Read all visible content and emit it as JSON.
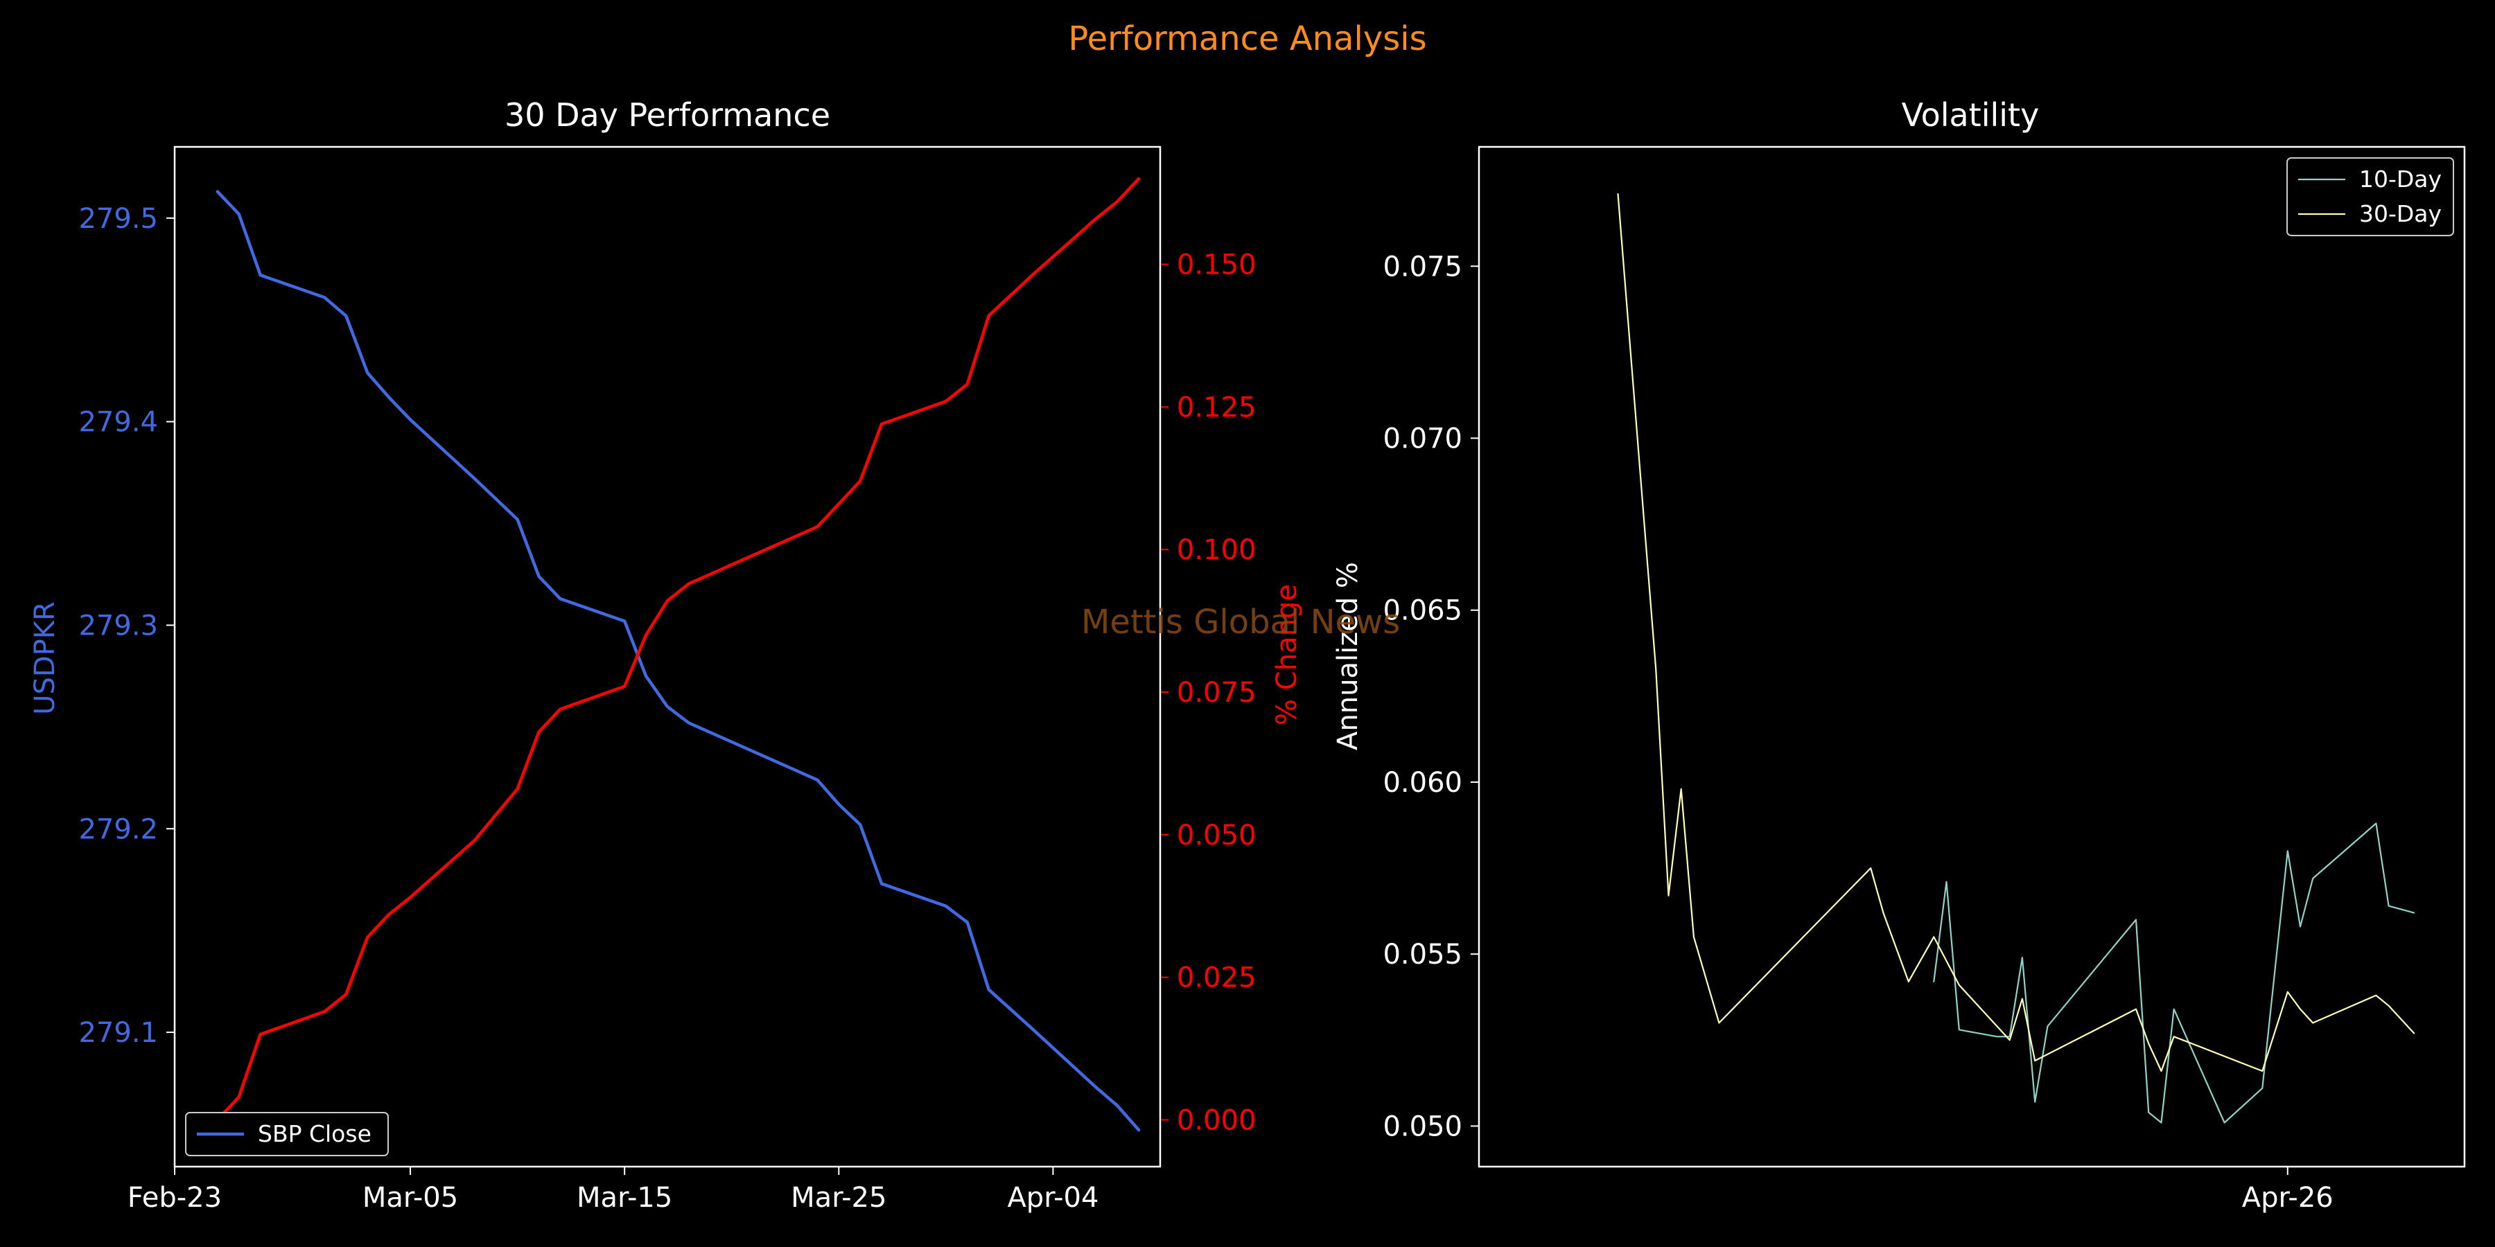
{
  "figure": {
    "suptitle": "Performance Analysis",
    "watermark": "Mettis Global News",
    "colors": {
      "background": "#000000",
      "suptitle": "#ff8c1a",
      "watermark": "#8b4a12"
    }
  },
  "chart_data": [
    {
      "type": "line",
      "title": "30 Day Performance",
      "xlabel": "",
      "ylabel": "USDPKR",
      "ylabel_right": "% Change",
      "x_tick_labels": [
        "Feb-23",
        "Mar-05",
        "Mar-15",
        "Mar-25",
        "Apr-04"
      ],
      "x_tick_dates": [
        "2024-02-23",
        "2024-03-05",
        "2024-03-15",
        "2024-03-25",
        "2024-04-04"
      ],
      "xlim": [
        "2024-02-23",
        "2024-04-09"
      ],
      "ylim": [
        279.034,
        279.535
      ],
      "y_ticks": [
        279.1,
        279.2,
        279.3,
        279.4,
        279.5
      ],
      "y_tick_labels": [
        "279.1",
        "279.2",
        "279.3",
        "279.4",
        "279.5"
      ],
      "ylim_right": [
        -0.0082,
        0.1706
      ],
      "y_ticks_right": [
        0.0,
        0.025,
        0.05,
        0.075,
        0.1,
        0.125,
        0.15
      ],
      "y_tick_labels_right": [
        "0.000",
        "0.025",
        "0.050",
        "0.075",
        "0.100",
        "0.125",
        "0.150"
      ],
      "legend": {
        "placement": "lower-left",
        "entries": [
          "SBP Close"
        ]
      },
      "grid": false,
      "series": [
        {
          "name": "SBP Close",
          "axis": "left",
          "color": "#4169e1",
          "points": [
            [
              "2024-02-25",
              279.513
            ],
            [
              "2024-02-26",
              279.502
            ],
            [
              "2024-02-27",
              279.472
            ],
            [
              "2024-03-01",
              279.461
            ],
            [
              "2024-03-02",
              279.452
            ],
            [
              "2024-03-03",
              279.424
            ],
            [
              "2024-03-04",
              279.412
            ],
            [
              "2024-03-05",
              279.401
            ],
            [
              "2024-03-08",
              279.372
            ],
            [
              "2024-03-10",
              279.352
            ],
            [
              "2024-03-11",
              279.324
            ],
            [
              "2024-03-12",
              279.313
            ],
            [
              "2024-03-15",
              279.302
            ],
            [
              "2024-03-16",
              279.275
            ],
            [
              "2024-03-17",
              279.26
            ],
            [
              "2024-03-18",
              279.252
            ],
            [
              "2024-03-24",
              279.224
            ],
            [
              "2024-03-25",
              279.212
            ],
            [
              "2024-03-26",
              279.202
            ],
            [
              "2024-03-27",
              279.173
            ],
            [
              "2024-03-30",
              279.162
            ],
            [
              "2024-03-31",
              279.154
            ],
            [
              "2024-04-01",
              279.121
            ],
            [
              "2024-04-03",
              279.102
            ],
            [
              "2024-04-06",
              279.073
            ],
            [
              "2024-04-07",
              279.064
            ],
            [
              "2024-04-08",
              279.052
            ]
          ]
        },
        {
          "name": "",
          "axis": "right",
          "color": "#ff0000",
          "points": [
            [
              "2024-02-25",
              0.0
            ],
            [
              "2024-02-26",
              0.004
            ],
            [
              "2024-02-27",
              0.015
            ],
            [
              "2024-03-01",
              0.019
            ],
            [
              "2024-03-02",
              0.022
            ],
            [
              "2024-03-03",
              0.032
            ],
            [
              "2024-03-04",
              0.036
            ],
            [
              "2024-03-05",
              0.039
            ],
            [
              "2024-03-08",
              0.049
            ],
            [
              "2024-03-10",
              0.058
            ],
            [
              "2024-03-11",
              0.068
            ],
            [
              "2024-03-12",
              0.072
            ],
            [
              "2024-03-15",
              0.076
            ],
            [
              "2024-03-16",
              0.085
            ],
            [
              "2024-03-17",
              0.091
            ],
            [
              "2024-03-18",
              0.094
            ],
            [
              "2024-03-24",
              0.104
            ],
            [
              "2024-03-25",
              0.108
            ],
            [
              "2024-03-26",
              0.112
            ],
            [
              "2024-03-27",
              0.122
            ],
            [
              "2024-03-30",
              0.126
            ],
            [
              "2024-03-31",
              0.129
            ],
            [
              "2024-04-01",
              0.141
            ],
            [
              "2024-04-03",
              0.148
            ],
            [
              "2024-04-06",
              0.158
            ],
            [
              "2024-04-07",
              0.161
            ],
            [
              "2024-04-08",
              0.165
            ]
          ]
        }
      ],
      "colors": {
        "left_axis": "#4169e1",
        "right_axis": "#ff0000",
        "frame": "#ffffff",
        "text": "#ffffff"
      }
    },
    {
      "type": "line",
      "title": "Volatility",
      "xlabel": "",
      "ylabel": "Annualized %",
      "x_tick_labels": [
        "Apr-26"
      ],
      "x_tick_dates": [
        "2024-04-26"
      ],
      "xlim": [
        "2024-02-22",
        "2024-05-10"
      ],
      "ylim": [
        0.04882,
        0.07847
      ],
      "y_ticks": [
        0.05,
        0.055,
        0.06,
        0.065,
        0.07,
        0.075
      ],
      "y_tick_labels": [
        "0.050",
        "0.055",
        "0.060",
        "0.065",
        "0.070",
        "0.075"
      ],
      "legend": {
        "placement": "upper-right",
        "entries": [
          "10-Day",
          "30-Day"
        ]
      },
      "grid": false,
      "series": [
        {
          "name": "10-Day",
          "color": "#8dd3c7",
          "points": [
            [
              "2024-03-29",
              0.0542
            ],
            [
              "2024-03-30",
              0.0571
            ],
            [
              "2024-03-31",
              0.0528
            ],
            [
              "2024-04-03",
              0.0526
            ],
            [
              "2024-04-04",
              0.0526
            ],
            [
              "2024-04-05",
              0.0549
            ],
            [
              "2024-04-06",
              0.0507
            ],
            [
              "2024-04-07",
              0.0529
            ],
            [
              "2024-04-14",
              0.056
            ],
            [
              "2024-04-15",
              0.0504
            ],
            [
              "2024-04-16",
              0.0501
            ],
            [
              "2024-04-17",
              0.0534
            ],
            [
              "2024-04-21",
              0.0501
            ],
            [
              "2024-04-24",
              0.0511
            ],
            [
              "2024-04-26",
              0.058
            ],
            [
              "2024-04-27",
              0.0558
            ],
            [
              "2024-04-28",
              0.0572
            ],
            [
              "2024-05-03",
              0.0588
            ],
            [
              "2024-05-04",
              0.0564
            ],
            [
              "2024-05-06",
              0.0562
            ]
          ]
        },
        {
          "name": "30-Day",
          "color": "#ffffb3",
          "points": [
            [
              "2024-03-04",
              0.0771
            ],
            [
              "2024-03-07",
              0.0633
            ],
            [
              "2024-03-08",
              0.0567
            ],
            [
              "2024-03-09",
              0.0598
            ],
            [
              "2024-03-10",
              0.0555
            ],
            [
              "2024-03-12",
              0.053
            ],
            [
              "2024-03-24",
              0.0575
            ],
            [
              "2024-03-25",
              0.0562
            ],
            [
              "2024-03-27",
              0.0542
            ],
            [
              "2024-03-29",
              0.0555
            ],
            [
              "2024-03-31",
              0.0541
            ],
            [
              "2024-04-04",
              0.0525
            ],
            [
              "2024-04-05",
              0.0537
            ],
            [
              "2024-04-06",
              0.0519
            ],
            [
              "2024-04-14",
              0.0534
            ],
            [
              "2024-04-15",
              0.0524
            ],
            [
              "2024-04-16",
              0.0516
            ],
            [
              "2024-04-17",
              0.0526
            ],
            [
              "2024-04-24",
              0.0516
            ],
            [
              "2024-04-26",
              0.0539
            ],
            [
              "2024-04-27",
              0.0534
            ],
            [
              "2024-04-28",
              0.053
            ],
            [
              "2024-05-03",
              0.0538
            ],
            [
              "2024-05-04",
              0.0535
            ],
            [
              "2024-05-06",
              0.0527
            ]
          ]
        }
      ],
      "colors": {
        "frame": "#ffffff",
        "text": "#ffffff"
      }
    }
  ]
}
